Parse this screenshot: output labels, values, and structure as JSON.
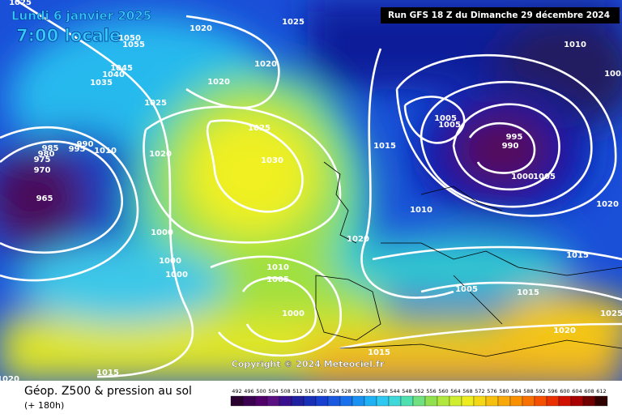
{
  "header": {
    "date": "Lundi 6 janvier 2025",
    "time": "7:00 locale",
    "run": "Run GFS 18 Z du Dimanche 29 décembre 2024"
  },
  "copyright": "Copyright © 2024 Meteociel.fr",
  "legend": {
    "title": "Géop. Z500 & pression au sol",
    "lead": "(+ 180h)",
    "scale": [
      492,
      496,
      500,
      504,
      508,
      512,
      516,
      520,
      524,
      528,
      532,
      536,
      540,
      544,
      548,
      552,
      556,
      560,
      564,
      568,
      572,
      576,
      580,
      584,
      588,
      592,
      596,
      600,
      604,
      608,
      612
    ]
  },
  "pressure_labels": [
    "1025",
    "1025",
    "1020",
    "1050",
    "1055",
    "1045",
    "1040",
    "1035",
    "1020",
    "1020",
    "1025",
    "1025",
    "1010",
    "1005",
    "1005",
    "1005",
    "995",
    "990",
    "1000",
    "1005",
    "1015",
    "1020",
    "1030",
    "990",
    "995",
    "1010",
    "985",
    "980",
    "975",
    "970",
    "965",
    "1010",
    "1020",
    "1000",
    "1000",
    "1000",
    "1020",
    "1010",
    "1005",
    "1015",
    "1005",
    "1015",
    "1000",
    "1025",
    "1020",
    "1015",
    "1015",
    "1020"
  ]
}
